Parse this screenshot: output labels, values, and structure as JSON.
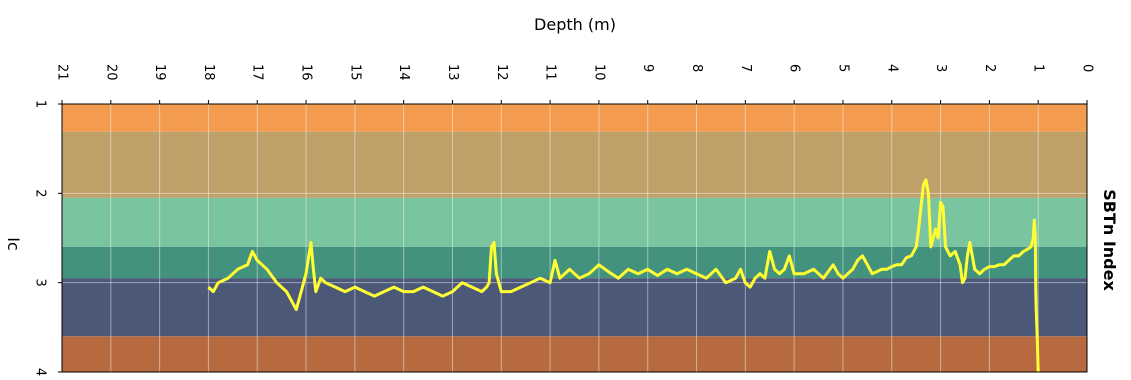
{
  "chart_data": {
    "type": "line",
    "title": "SBTn Index",
    "xlabel": "Depth (m)",
    "ylabel": "Ic",
    "x_reversed": true,
    "y_inverted": true,
    "xlim": [
      0,
      21
    ],
    "ylim": [
      1,
      4
    ],
    "x_ticks": [
      "0",
      "1",
      "2",
      "3",
      "4",
      "5",
      "6",
      "7",
      "8",
      "9",
      "10",
      "11",
      "12",
      "13",
      "14",
      "15",
      "16",
      "17",
      "18",
      "19",
      "20",
      "21"
    ],
    "y_ticks": [
      "1",
      "2",
      "3",
      "4"
    ],
    "grid": true,
    "zones": [
      {
        "from": 1.0,
        "to": 1.31,
        "color": "#f39c4f"
      },
      {
        "from": 1.31,
        "to": 2.05,
        "color": "#bea068"
      },
      {
        "from": 2.05,
        "to": 2.6,
        "color": "#7bc4a0"
      },
      {
        "from": 2.6,
        "to": 2.95,
        "color": "#42927e"
      },
      {
        "from": 2.95,
        "to": 3.6,
        "color": "#4b5878"
      },
      {
        "from": 3.6,
        "to": 4.0,
        "color": "#b76a40"
      }
    ],
    "series": [
      {
        "color": "#ffff33",
        "x": [
          1.0,
          1.02,
          1.04,
          1.05,
          1.06,
          1.08,
          1.1,
          1.15,
          1.2,
          1.3,
          1.4,
          1.5,
          1.6,
          1.7,
          1.8,
          1.9,
          2.0,
          2.1,
          2.2,
          2.3,
          2.4,
          2.45,
          2.5,
          2.55,
          2.6,
          2.7,
          2.8,
          2.9,
          2.95,
          3.0,
          3.05,
          3.1,
          3.2,
          3.25,
          3.3,
          3.35,
          3.4,
          3.45,
          3.5,
          3.6,
          3.7,
          3.8,
          3.9,
          4.0,
          4.1,
          4.2,
          4.4,
          4.5,
          4.6,
          4.7,
          4.8,
          4.9,
          5.0,
          5.1,
          5.2,
          5.4,
          5.6,
          5.8,
          6.0,
          6.1,
          6.2,
          6.3,
          6.4,
          6.5,
          6.6,
          6.7,
          6.8,
          6.9,
          7.0,
          7.1,
          7.2,
          7.4,
          7.6,
          7.8,
          8.0,
          8.2,
          8.4,
          8.6,
          8.8,
          9.0,
          9.2,
          9.4,
          9.6,
          9.8,
          10.0,
          10.2,
          10.4,
          10.6,
          10.8,
          10.9,
          11.0,
          11.2,
          11.4,
          11.6,
          11.8,
          12.0,
          12.1,
          12.15,
          12.2,
          12.25,
          12.3,
          12.4,
          12.6,
          12.8,
          13.0,
          13.2,
          13.4,
          13.6,
          13.8,
          14.0,
          14.2,
          14.4,
          14.6,
          14.8,
          15.0,
          15.2,
          15.4,
          15.6,
          15.7,
          15.8,
          15.85,
          15.9,
          16.0,
          16.1,
          16.2,
          16.4,
          16.6,
          16.8,
          17.0,
          17.1,
          17.2,
          17.4,
          17.6,
          17.8,
          17.9,
          18.0
        ],
        "y": [
          4.0,
          3.6,
          3.3,
          3.1,
          2.5,
          2.3,
          2.5,
          2.6,
          2.62,
          2.65,
          2.7,
          2.7,
          2.75,
          2.8,
          2.8,
          2.82,
          2.82,
          2.85,
          2.9,
          2.85,
          2.55,
          2.7,
          2.95,
          3.0,
          2.8,
          2.65,
          2.7,
          2.6,
          2.15,
          2.1,
          2.5,
          2.4,
          2.6,
          2.0,
          1.85,
          1.9,
          2.15,
          2.4,
          2.6,
          2.7,
          2.72,
          2.8,
          2.8,
          2.82,
          2.85,
          2.85,
          2.9,
          2.8,
          2.7,
          2.75,
          2.85,
          2.9,
          2.95,
          2.9,
          2.8,
          2.95,
          2.85,
          2.9,
          2.9,
          2.7,
          2.85,
          2.9,
          2.85,
          2.65,
          2.95,
          2.9,
          2.95,
          3.05,
          3.0,
          2.85,
          2.95,
          3.0,
          2.85,
          2.95,
          2.9,
          2.85,
          2.9,
          2.85,
          2.92,
          2.85,
          2.9,
          2.85,
          2.95,
          2.88,
          2.8,
          2.9,
          2.95,
          2.85,
          2.95,
          2.75,
          3.0,
          2.95,
          3.0,
          3.05,
          3.1,
          3.1,
          2.9,
          2.55,
          2.6,
          3.0,
          3.05,
          3.1,
          3.05,
          3.0,
          3.1,
          3.15,
          3.1,
          3.05,
          3.1,
          3.1,
          3.05,
          3.1,
          3.15,
          3.1,
          3.05,
          3.1,
          3.05,
          3.0,
          2.95,
          3.1,
          2.85,
          2.55,
          2.9,
          3.1,
          3.3,
          3.1,
          3.0,
          2.85,
          2.75,
          2.65,
          2.8,
          2.85,
          2.95,
          3.0,
          3.1,
          3.05
        ]
      }
    ]
  }
}
